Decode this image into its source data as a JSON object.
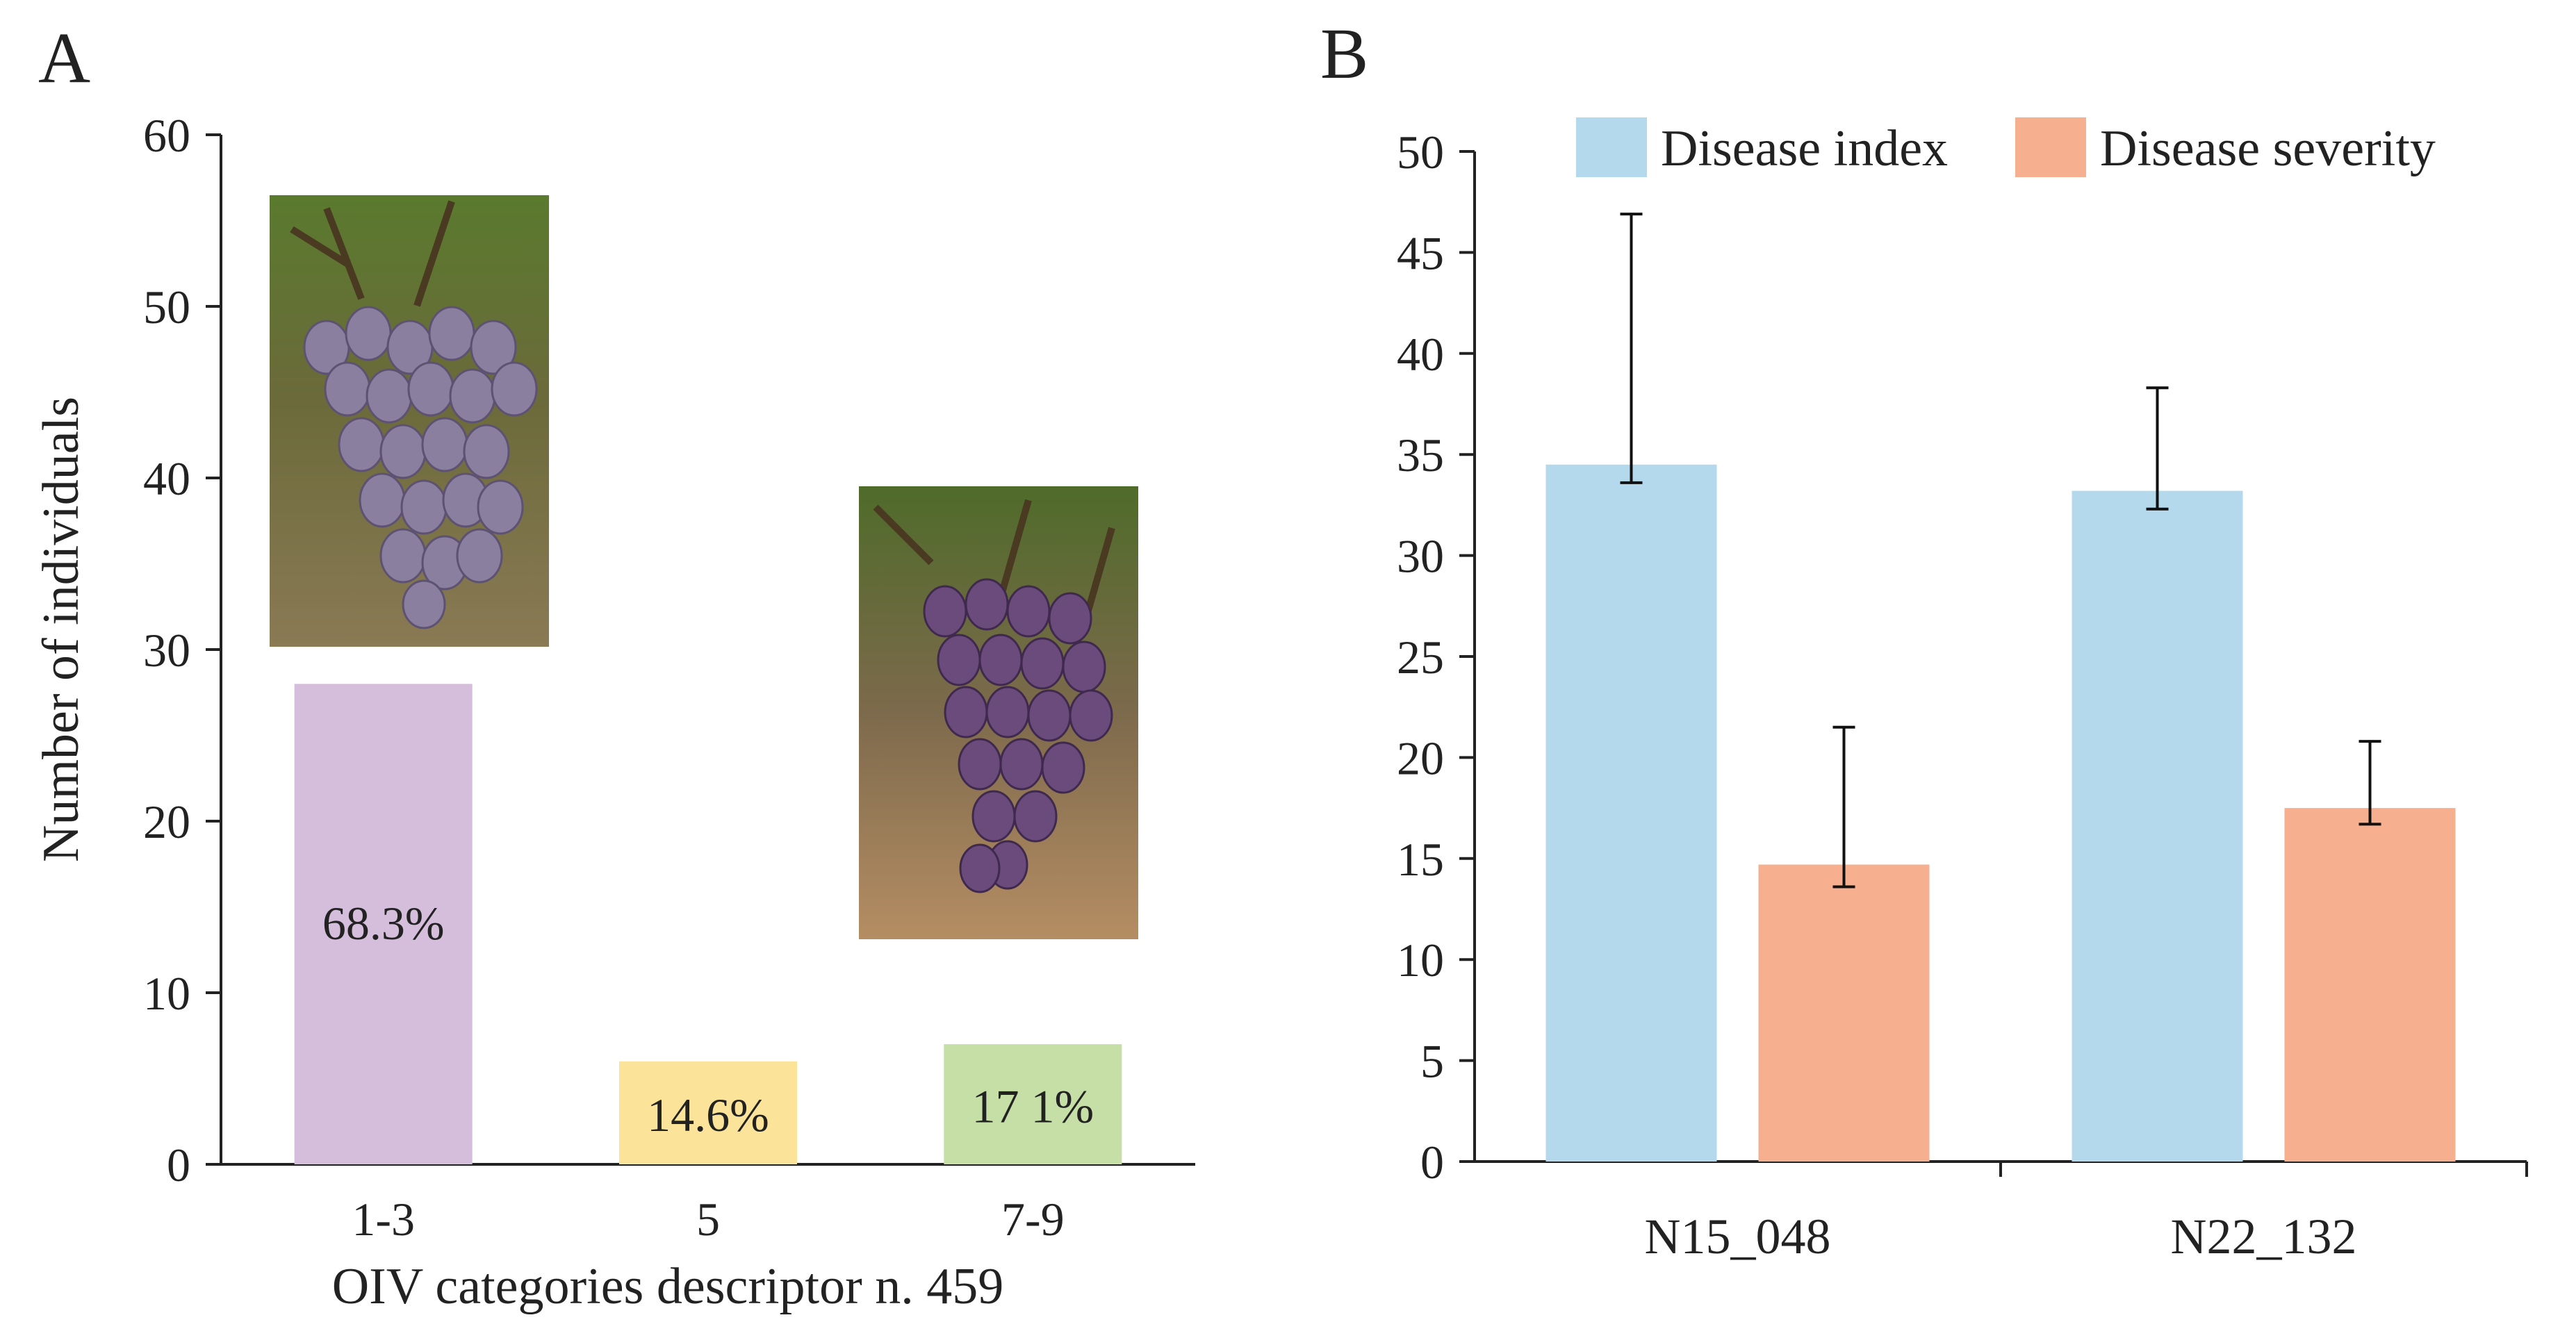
{
  "panel_a": {
    "label": "A",
    "image_captions": [
      "grape-cluster-photo",
      "grape-cluster-photo"
    ]
  },
  "panel_b": {
    "label": "B"
  },
  "chart_data": [
    {
      "type": "bar",
      "title": "",
      "xlabel": "OIV categories descriptor n. 459",
      "ylabel": "Number of individuals",
      "ylim": [
        0,
        60
      ],
      "yticks": [
        0,
        10,
        20,
        30,
        40,
        50,
        60
      ],
      "categories": [
        "1-3",
        "5",
        "7-9"
      ],
      "values": [
        28,
        6,
        7
      ],
      "data_labels": [
        "68.3%",
        "14.6%",
        "17 1%"
      ],
      "colors": [
        "#d5bddc",
        "#fbe39a",
        "#c5dfa6"
      ],
      "grid": false
    },
    {
      "type": "bar",
      "title": "",
      "xlabel": "",
      "ylabel": "",
      "ylim": [
        0,
        50
      ],
      "yticks": [
        0,
        5,
        10,
        15,
        20,
        25,
        30,
        35,
        40,
        45,
        50
      ],
      "categories": [
        "N15_048",
        "N22_132"
      ],
      "series": [
        {
          "name": "Disease index",
          "values": [
            34.5,
            33.2
          ],
          "err_low": [
            33.6,
            32.3
          ],
          "err_high": [
            46.9,
            38.3
          ],
          "color": "#b4d9ec"
        },
        {
          "name": "Disease severity",
          "values": [
            14.7,
            17.5
          ],
          "err_low": [
            13.6,
            16.7
          ],
          "err_high": [
            21.5,
            20.8
          ],
          "color": "#f6b08f"
        }
      ],
      "legend_position": "top",
      "grid": false
    }
  ]
}
